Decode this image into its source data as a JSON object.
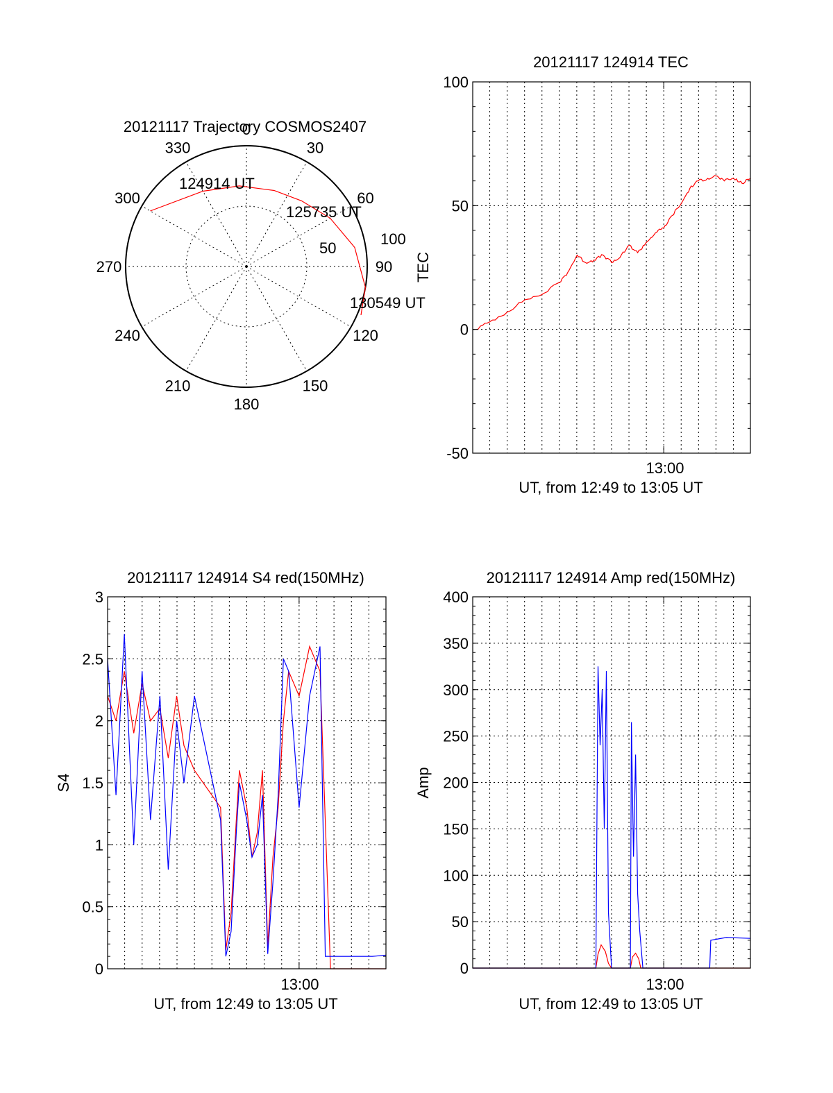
{
  "chart_data": [
    {
      "type": "polar",
      "title": "20121117 Trajectory COSMOS2407",
      "angle_labels": [
        "0",
        "30",
        "60",
        "90",
        "120",
        "150",
        "180",
        "210",
        "240",
        "270",
        "300",
        "330"
      ],
      "radial_labels": [
        "50",
        "100"
      ],
      "track_labels": [
        "124914 UT",
        "125735 UT",
        "130549 UT"
      ],
      "track_color": "#ff0000",
      "track": [
        {
          "az": 300,
          "zen": 92
        },
        {
          "az": 330,
          "zen": 72
        },
        {
          "az": 355,
          "zen": 67
        },
        {
          "az": 20,
          "zen": 67
        },
        {
          "az": 40,
          "zen": 71
        },
        {
          "az": 60,
          "zen": 80
        },
        {
          "az": 80,
          "zen": 91
        },
        {
          "az": 100,
          "zen": 100
        },
        {
          "az": 113,
          "zen": 103
        }
      ]
    },
    {
      "type": "line",
      "title": "20121117 124914 TEC",
      "xlabel": "UT, from 12:49 to 13:05 UT",
      "ylabel": "TEC",
      "xlim": [
        12.817,
        13.083
      ],
      "ylim": [
        -50,
        100
      ],
      "yticks": [
        "-50",
        "0",
        "50",
        "100"
      ],
      "xtick_label": "13:00",
      "grid": true,
      "series": [
        {
          "color": "#ff0000",
          "x": [
            12.82,
            12.833,
            12.85,
            12.867,
            12.883,
            12.9,
            12.908,
            12.917,
            12.925,
            12.933,
            12.942,
            12.95,
            12.958,
            12.967,
            12.975,
            12.983,
            12.992,
            13.0,
            13.008,
            13.017,
            13.025,
            13.033,
            13.042,
            13.05,
            13.058,
            13.067,
            13.075,
            13.083
          ],
          "y": [
            0,
            3,
            7,
            12,
            14,
            19,
            23,
            30,
            27,
            28,
            30,
            27,
            29,
            34,
            31,
            35,
            39,
            41,
            46,
            51,
            57,
            60,
            61,
            62,
            60,
            61,
            59,
            61
          ]
        }
      ]
    },
    {
      "type": "line",
      "title": "20121117 124914 S4 red(150MHz)",
      "xlabel": "UT, from 12:49 to 13:05 UT",
      "ylabel": "S4",
      "xlim": [
        12.817,
        13.083
      ],
      "ylim": [
        0,
        3
      ],
      "yticks": [
        "0",
        "0.5",
        "1",
        "1.5",
        "2",
        "2.5",
        "3"
      ],
      "xtick_label": "13:00",
      "grid": true,
      "series": [
        {
          "color": "#ff0000",
          "x": [
            12.817,
            12.825,
            12.833,
            12.842,
            12.85,
            12.858,
            12.867,
            12.875,
            12.883,
            12.89,
            12.9,
            12.925,
            12.93,
            12.935,
            12.94,
            12.943,
            12.95,
            12.955,
            12.96,
            12.965,
            12.97,
            12.975,
            12.98,
            12.985,
            12.99,
            13.0,
            13.01,
            13.02,
            13.03,
            13.05,
            13.07,
            13.083
          ],
          "y": [
            2.2,
            2.0,
            2.4,
            1.9,
            2.3,
            2.0,
            2.1,
            1.7,
            2.2,
            1.8,
            1.6,
            1.3,
            0.15,
            0.45,
            1.2,
            1.6,
            1.3,
            0.9,
            1.1,
            1.6,
            0.18,
            0.9,
            1.3,
            2.0,
            2.4,
            2.2,
            2.6,
            2.4,
            0,
            0,
            0,
            0
          ]
        },
        {
          "color": "#0000ff",
          "x": [
            12.817,
            12.825,
            12.833,
            12.842,
            12.85,
            12.858,
            12.867,
            12.875,
            12.883,
            12.89,
            12.9,
            12.925,
            12.93,
            12.935,
            12.94,
            12.943,
            12.95,
            12.955,
            12.96,
            12.965,
            12.97,
            12.975,
            12.98,
            12.985,
            12.99,
            13.0,
            13.01,
            13.02,
            13.025,
            13.05,
            13.07,
            13.083
          ],
          "y": [
            2.5,
            1.4,
            2.7,
            1.0,
            2.4,
            1.2,
            2.2,
            0.8,
            2.0,
            1.5,
            2.2,
            1.2,
            0.1,
            0.3,
            1.1,
            1.5,
            1.2,
            0.9,
            1.0,
            1.4,
            0.12,
            0.7,
            1.4,
            2.5,
            2.4,
            1.3,
            2.2,
            2.6,
            0.1,
            0.1,
            0.1,
            0.11
          ]
        }
      ]
    },
    {
      "type": "line",
      "title": "20121117 124914 Amp red(150MHz)",
      "xlabel": "UT, from 12:49 to 13:05 UT",
      "ylabel": "Amp",
      "xlim": [
        12.817,
        13.083
      ],
      "ylim": [
        0,
        400
      ],
      "yticks": [
        "0",
        "50",
        "100",
        "150",
        "200",
        "250",
        "300",
        "350",
        "400"
      ],
      "xtick_label": "13:00",
      "grid": true,
      "series": [
        {
          "color": "#ff0000",
          "x": [
            12.817,
            12.935,
            12.937,
            12.94,
            12.944,
            12.947,
            12.95,
            12.968,
            12.97,
            12.973,
            12.976,
            12.978,
            13.083
          ],
          "y": [
            0,
            0,
            15,
            25,
            18,
            5,
            0,
            0,
            12,
            16,
            10,
            0,
            0
          ]
        },
        {
          "color": "#0000ff",
          "x": [
            12.817,
            12.935,
            12.937,
            12.939,
            12.941,
            12.943,
            12.945,
            12.947,
            12.95,
            12.968,
            12.969,
            12.971,
            12.973,
            12.975,
            12.977,
            12.98,
            13.044,
            13.045,
            13.06,
            13.083
          ],
          "y": [
            0,
            0,
            325,
            240,
            300,
            150,
            320,
            60,
            0,
            0,
            265,
            120,
            230,
            80,
            40,
            0,
            0,
            30,
            33,
            32
          ]
        }
      ]
    }
  ]
}
